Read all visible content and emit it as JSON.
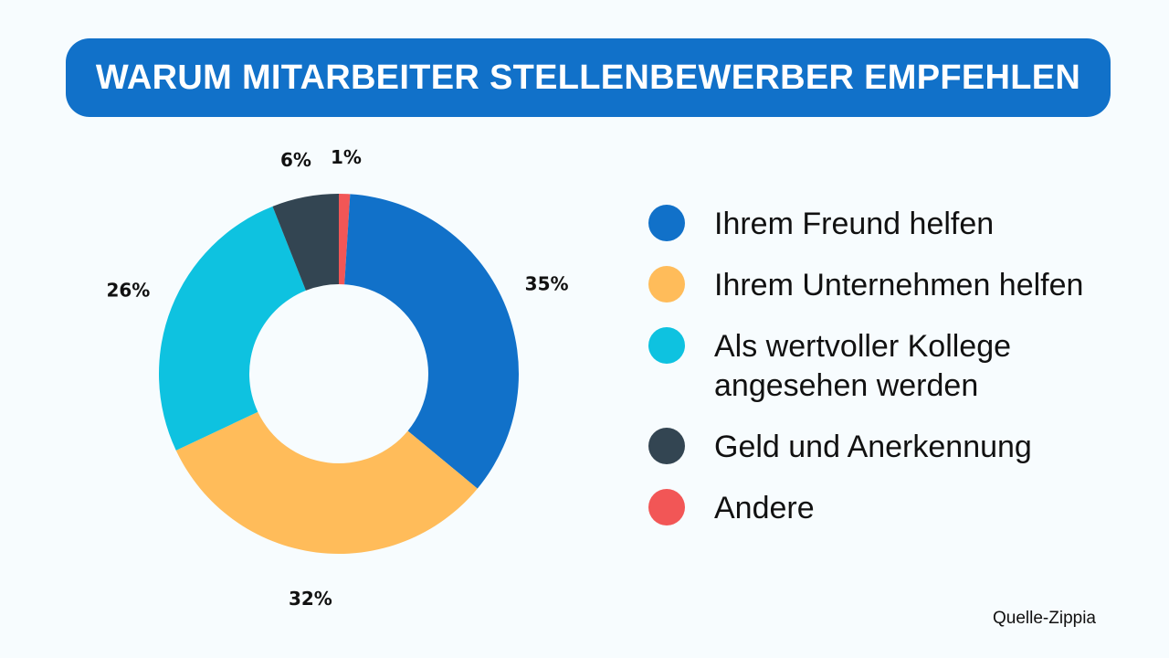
{
  "chart_data": {
    "type": "pie",
    "variant": "donut",
    "title": "WARUM MITARBEITER STELLENBEWERBER EMPFEHLEN",
    "legend_position": "right",
    "slices": [
      {
        "name": "Andere",
        "value": 1,
        "label": "1%",
        "color": "#f25656"
      },
      {
        "name": "Ihrem Freund helfen",
        "value": 35,
        "label": "35%",
        "color": "#1171c9"
      },
      {
        "name": "Ihrem Unternehmen helfen",
        "value": 32,
        "label": "32%",
        "color": "#ffbc5a"
      },
      {
        "name": "Als wertvoller Kollege angesehen werden",
        "value": 26,
        "label": "26%",
        "color": "#0ec2e0"
      },
      {
        "name": "Geld und Anerkennung",
        "value": 6,
        "label": "6%",
        "color": "#334552"
      }
    ],
    "legend": [
      {
        "label": "Ihrem Freund helfen",
        "color": "#1171c9"
      },
      {
        "label": "Ihrem Unternehmen helfen",
        "color": "#ffbc5a"
      },
      {
        "label": "Als wertvoller Kollege angesehen werden",
        "color": "#0ec2e0"
      },
      {
        "label": "Geld und Anerkennung",
        "color": "#334552"
      },
      {
        "label": "Andere",
        "color": "#f25656"
      }
    ]
  },
  "source": "Quelle-Zippia"
}
